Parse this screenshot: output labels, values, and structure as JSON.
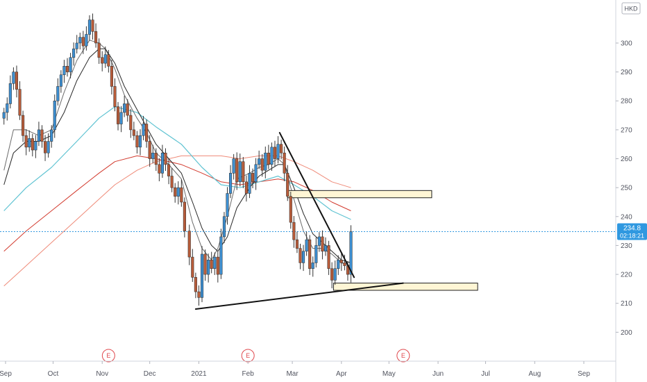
{
  "currency_badge": "HKD",
  "price_tag": {
    "price": "234.8",
    "countdown": "02:18:21"
  },
  "colors": {
    "up": "#3d8fd1",
    "down": "#b85c3a",
    "sma_fast": "#6b6b6b",
    "sma_slow": "#262626",
    "ma_cyan": "#5fc3d2",
    "ma_red": "#d23a2e",
    "ma_salmon": "#ef8a78",
    "zone_fill": "#fff6d5",
    "price_line": "#2f98e0",
    "earnings": "#e0474c"
  },
  "chart_data": {
    "type": "candlestick",
    "ylim": [
      190,
      312
    ],
    "y_ticks": [
      200,
      210,
      220,
      230,
      240,
      250,
      260,
      270,
      280,
      290,
      300
    ],
    "x_ticks": [
      {
        "label": "Sep",
        "date": "2020-09-01"
      },
      {
        "label": "Oct",
        "date": "2020-10-01"
      },
      {
        "label": "Nov",
        "date": "2020-11-01"
      },
      {
        "label": "Dec",
        "date": "2020-12-01"
      },
      {
        "label": "2021",
        "date": "2021-01-01"
      },
      {
        "label": "Feb",
        "date": "2021-02-01"
      },
      {
        "label": "Mar",
        "date": "2021-03-01"
      },
      {
        "label": "Apr",
        "date": "2021-04-01"
      },
      {
        "label": "May",
        "date": "2021-05-01"
      },
      {
        "label": "Jun",
        "date": "2021-06-01"
      },
      {
        "label": "Jul",
        "date": "2021-07-01"
      },
      {
        "label": "Aug",
        "date": "2021-08-01"
      },
      {
        "label": "Sep",
        "date": "2021-09-01"
      }
    ],
    "earnings_markers": [
      {
        "label": "E",
        "date": "2020-11-05"
      },
      {
        "label": "E",
        "date": "2021-02-01"
      },
      {
        "label": "E",
        "date": "2021-05-10"
      }
    ],
    "last_price": 234.8,
    "price_series": [
      [
        "2020-08-31",
        276
      ],
      [
        "2020-09-02",
        279
      ],
      [
        "2020-09-04",
        286
      ],
      [
        "2020-09-06",
        290
      ],
      [
        "2020-09-08",
        284
      ],
      [
        "2020-09-10",
        275
      ],
      [
        "2020-09-12",
        268
      ],
      [
        "2020-09-14",
        264
      ],
      [
        "2020-09-16",
        267
      ],
      [
        "2020-09-18",
        263
      ],
      [
        "2020-09-20",
        266
      ],
      [
        "2020-09-22",
        270
      ],
      [
        "2020-09-24",
        266
      ],
      [
        "2020-09-26",
        262
      ],
      [
        "2020-09-28",
        266
      ],
      [
        "2020-09-30",
        270
      ],
      [
        "2020-10-02",
        280
      ],
      [
        "2020-10-04",
        285
      ],
      [
        "2020-10-06",
        289
      ],
      [
        "2020-10-08",
        292
      ],
      [
        "2020-10-10",
        290
      ],
      [
        "2020-10-12",
        295
      ],
      [
        "2020-10-14",
        298
      ],
      [
        "2020-10-16",
        300
      ],
      [
        "2020-10-18",
        302
      ],
      [
        "2020-10-20",
        299
      ],
      [
        "2020-10-22",
        303
      ],
      [
        "2020-10-24",
        308
      ],
      [
        "2020-10-26",
        304
      ],
      [
        "2020-10-28",
        300
      ],
      [
        "2020-10-30",
        295
      ],
      [
        "2020-11-01",
        293
      ],
      [
        "2020-11-03",
        296
      ],
      [
        "2020-11-05",
        292
      ],
      [
        "2020-11-07",
        285
      ],
      [
        "2020-11-09",
        278
      ],
      [
        "2020-11-11",
        272
      ],
      [
        "2020-11-13",
        276
      ],
      [
        "2020-11-15",
        279
      ],
      [
        "2020-11-17",
        275
      ],
      [
        "2020-11-19",
        270
      ],
      [
        "2020-11-21",
        268
      ],
      [
        "2020-11-23",
        264
      ],
      [
        "2020-11-25",
        268
      ],
      [
        "2020-11-27",
        272
      ],
      [
        "2020-11-29",
        266
      ],
      [
        "2020-12-01",
        260
      ],
      [
        "2020-12-03",
        262
      ],
      [
        "2020-12-05",
        258
      ],
      [
        "2020-12-07",
        255
      ],
      [
        "2020-12-09",
        262
      ],
      [
        "2020-12-11",
        258
      ],
      [
        "2020-12-13",
        254
      ],
      [
        "2020-12-15",
        250
      ],
      [
        "2020-12-17",
        247
      ],
      [
        "2020-12-19",
        250
      ],
      [
        "2020-12-21",
        245
      ],
      [
        "2020-12-23",
        235
      ],
      [
        "2020-12-26",
        226
      ],
      [
        "2020-12-28",
        219
      ],
      [
        "2020-12-30",
        214
      ],
      [
        "2021-01-01",
        212
      ],
      [
        "2021-01-03",
        227
      ],
      [
        "2021-01-05",
        220
      ],
      [
        "2021-01-07",
        225
      ],
      [
        "2021-01-09",
        222
      ],
      [
        "2021-01-11",
        226
      ],
      [
        "2021-01-13",
        220
      ],
      [
        "2021-01-15",
        233
      ],
      [
        "2021-01-17",
        240
      ],
      [
        "2021-01-19",
        248
      ],
      [
        "2021-01-21",
        255
      ],
      [
        "2021-01-23",
        260
      ],
      [
        "2021-01-25",
        252
      ],
      [
        "2021-01-27",
        259
      ],
      [
        "2021-01-29",
        252
      ],
      [
        "2021-01-31",
        248
      ],
      [
        "2021-02-02",
        255
      ],
      [
        "2021-02-04",
        252
      ],
      [
        "2021-02-06",
        258
      ],
      [
        "2021-02-08",
        260
      ],
      [
        "2021-02-10",
        256
      ],
      [
        "2021-02-12",
        262
      ],
      [
        "2021-02-14",
        258
      ],
      [
        "2021-02-16",
        264
      ],
      [
        "2021-02-18",
        260
      ],
      [
        "2021-02-20",
        265
      ],
      [
        "2021-02-22",
        262
      ],
      [
        "2021-02-24",
        255
      ],
      [
        "2021-02-26",
        247
      ],
      [
        "2021-02-28",
        238
      ],
      [
        "2021-03-02",
        232
      ],
      [
        "2021-03-04",
        229
      ],
      [
        "2021-03-06",
        224
      ],
      [
        "2021-03-08",
        228
      ],
      [
        "2021-03-10",
        232
      ],
      [
        "2021-03-12",
        222
      ],
      [
        "2021-03-14",
        224
      ],
      [
        "2021-03-16",
        230
      ],
      [
        "2021-03-18",
        233
      ],
      [
        "2021-03-20",
        228
      ],
      [
        "2021-03-22",
        230
      ],
      [
        "2021-03-24",
        222
      ],
      [
        "2021-03-26",
        218
      ],
      [
        "2021-03-28",
        222
      ],
      [
        "2021-03-30",
        225
      ],
      [
        "2021-04-01",
        224
      ],
      [
        "2021-04-03",
        223
      ],
      [
        "2021-04-05",
        220
      ],
      [
        "2021-04-07",
        234.8
      ]
    ],
    "sma_fast_series": [
      [
        "2020-08-31",
        256
      ],
      [
        "2020-09-06",
        270
      ],
      [
        "2020-09-14",
        270
      ],
      [
        "2020-09-22",
        268
      ],
      [
        "2020-09-30",
        270
      ],
      [
        "2020-10-08",
        283
      ],
      [
        "2020-10-16",
        294
      ],
      [
        "2020-10-24",
        301
      ],
      [
        "2020-10-30",
        300
      ],
      [
        "2020-11-03",
        298
      ],
      [
        "2020-11-09",
        291
      ],
      [
        "2020-11-15",
        282
      ],
      [
        "2020-11-23",
        274
      ],
      [
        "2020-11-29",
        269
      ],
      [
        "2020-12-05",
        262
      ],
      [
        "2020-12-13",
        258
      ],
      [
        "2020-12-21",
        253
      ],
      [
        "2020-12-28",
        238
      ],
      [
        "2021-01-03",
        229
      ],
      [
        "2021-01-09",
        225
      ],
      [
        "2021-01-13",
        229
      ],
      [
        "2021-01-19",
        240
      ],
      [
        "2021-01-25",
        253
      ],
      [
        "2021-02-02",
        255
      ],
      [
        "2021-02-08",
        257
      ],
      [
        "2021-02-14",
        258
      ],
      [
        "2021-02-20",
        260
      ],
      [
        "2021-02-24",
        258
      ],
      [
        "2021-03-02",
        246
      ],
      [
        "2021-03-08",
        235
      ],
      [
        "2021-03-14",
        229
      ],
      [
        "2021-03-20",
        229
      ],
      [
        "2021-03-26",
        227
      ],
      [
        "2021-04-01",
        224
      ],
      [
        "2021-04-07",
        223
      ]
    ],
    "sma_slow_series": [
      [
        "2020-08-31",
        251
      ],
      [
        "2020-09-06",
        262
      ],
      [
        "2020-09-14",
        266
      ],
      [
        "2020-09-22",
        266
      ],
      [
        "2020-09-30",
        268
      ],
      [
        "2020-10-08",
        276
      ],
      [
        "2020-10-16",
        287
      ],
      [
        "2020-10-24",
        295
      ],
      [
        "2020-10-30",
        298
      ],
      [
        "2020-11-03",
        298
      ],
      [
        "2020-11-09",
        293
      ],
      [
        "2020-11-15",
        285
      ],
      [
        "2020-11-23",
        277
      ],
      [
        "2020-11-29",
        271
      ],
      [
        "2020-12-05",
        265
      ],
      [
        "2020-12-13",
        260
      ],
      [
        "2020-12-21",
        255
      ],
      [
        "2020-12-28",
        245
      ],
      [
        "2021-01-03",
        236
      ],
      [
        "2021-01-09",
        230
      ],
      [
        "2021-01-13",
        228
      ],
      [
        "2021-01-19",
        233
      ],
      [
        "2021-01-25",
        243
      ],
      [
        "2021-02-02",
        250
      ],
      [
        "2021-02-08",
        254
      ],
      [
        "2021-02-14",
        256
      ],
      [
        "2021-02-20",
        258
      ],
      [
        "2021-02-24",
        258
      ],
      [
        "2021-03-02",
        250
      ],
      [
        "2021-03-08",
        241
      ],
      [
        "2021-03-14",
        234
      ],
      [
        "2021-03-20",
        231
      ],
      [
        "2021-03-26",
        228
      ],
      [
        "2021-04-01",
        225
      ],
      [
        "2021-04-07",
        224
      ]
    ],
    "ma_cyan_series": [
      [
        "2020-08-31",
        242
      ],
      [
        "2020-09-14",
        250
      ],
      [
        "2020-09-30",
        257
      ],
      [
        "2020-10-16",
        266
      ],
      [
        "2020-10-30",
        274
      ],
      [
        "2020-11-09",
        278
      ],
      [
        "2020-11-23",
        276
      ],
      [
        "2020-12-05",
        271
      ],
      [
        "2020-12-21",
        265
      ],
      [
        "2021-01-03",
        257
      ],
      [
        "2021-01-15",
        251
      ],
      [
        "2021-01-27",
        250
      ],
      [
        "2021-02-08",
        252
      ],
      [
        "2021-02-20",
        254
      ],
      [
        "2021-03-02",
        251
      ],
      [
        "2021-03-14",
        247
      ],
      [
        "2021-03-26",
        242
      ],
      [
        "2021-04-07",
        239
      ]
    ],
    "ma_red_series": [
      [
        "2020-08-31",
        228
      ],
      [
        "2020-09-14",
        235
      ],
      [
        "2020-09-30",
        242
      ],
      [
        "2020-10-16",
        249
      ],
      [
        "2020-10-30",
        255
      ],
      [
        "2020-11-09",
        259
      ],
      [
        "2020-11-23",
        261
      ],
      [
        "2020-12-05",
        260
      ],
      [
        "2020-12-21",
        258
      ],
      [
        "2021-01-03",
        255
      ],
      [
        "2021-01-15",
        252
      ],
      [
        "2021-01-27",
        251
      ],
      [
        "2021-02-08",
        252
      ],
      [
        "2021-02-20",
        253
      ],
      [
        "2021-03-02",
        252
      ],
      [
        "2021-03-14",
        249
      ],
      [
        "2021-03-26",
        245
      ],
      [
        "2021-04-07",
        242
      ]
    ],
    "ma_salmon_series": [
      [
        "2020-08-31",
        216
      ],
      [
        "2020-09-14",
        223
      ],
      [
        "2020-09-30",
        231
      ],
      [
        "2020-10-16",
        239
      ],
      [
        "2020-10-30",
        246
      ],
      [
        "2020-11-09",
        251
      ],
      [
        "2020-11-23",
        256
      ],
      [
        "2020-12-05",
        259
      ],
      [
        "2020-12-21",
        261
      ],
      [
        "2021-01-03",
        261
      ],
      [
        "2021-01-15",
        261
      ],
      [
        "2021-01-27",
        260
      ],
      [
        "2021-02-08",
        261
      ],
      [
        "2021-02-20",
        261
      ],
      [
        "2021-03-02",
        259
      ],
      [
        "2021-03-14",
        256
      ],
      [
        "2021-03-26",
        252
      ],
      [
        "2021-04-07",
        250
      ]
    ],
    "annotations": {
      "trendlines": [
        {
          "name": "support",
          "from": [
            "2020-12-30",
            208
          ],
          "to": [
            "2021-05-10",
            217
          ]
        },
        {
          "name": "resistance",
          "from": [
            "2021-02-21",
            269
          ],
          "to": [
            "2021-04-09",
            219
          ]
        }
      ],
      "zones": [
        {
          "name": "upper-zone",
          "from": [
            "2021-02-26",
            249
          ],
          "to": [
            "2021-05-28",
            246.5
          ]
        },
        {
          "name": "lower-zone",
          "from": [
            "2021-03-27",
            217
          ],
          "to": [
            "2021-06-26",
            214.5
          ]
        }
      ]
    }
  }
}
